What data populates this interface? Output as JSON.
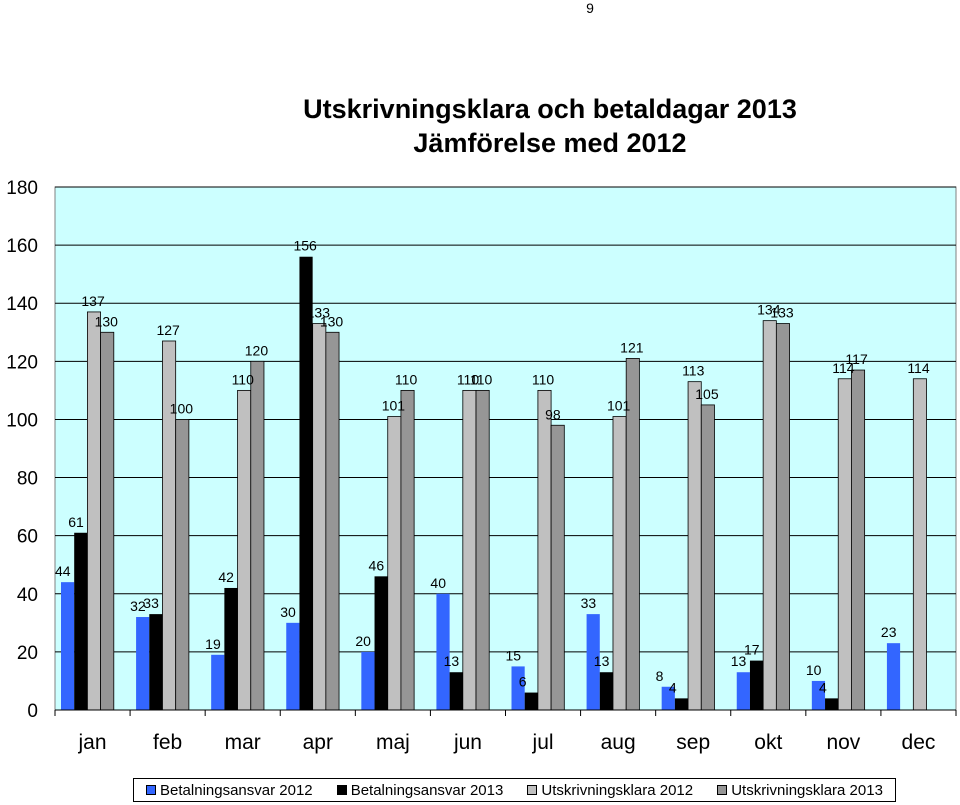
{
  "page": {
    "number": "9"
  },
  "chart_data": {
    "type": "bar",
    "title": [
      "Utskrivningsklara och betaldagar 2013",
      "Jämförelse med 2012"
    ],
    "categories": [
      "jan",
      "feb",
      "mar",
      "apr",
      "maj",
      "jun",
      "jul",
      "aug",
      "sep",
      "okt",
      "nov",
      "dec"
    ],
    "ylim": [
      0,
      180
    ],
    "yticks": [
      "0",
      "20",
      "40",
      "60",
      "80",
      "100",
      "120",
      "140",
      "160",
      "180"
    ],
    "grid": true,
    "legend_position": "bottom",
    "plot_background": "#CCFFFF",
    "series": [
      {
        "name": "Betalningsansvar 2012",
        "color": "#3366FF",
        "values": [
          44,
          32,
          19,
          30,
          20,
          40,
          15,
          33,
          8,
          13,
          10,
          23
        ]
      },
      {
        "name": "Betalningsansvar 2013",
        "color": "#000000",
        "values": [
          61,
          33,
          42,
          156,
          46,
          13,
          6,
          13,
          4,
          17,
          4,
          null
        ]
      },
      {
        "name": "Utskrivningsklara 2012",
        "color": "#C0C0C0",
        "values": [
          137,
          127,
          110,
          133,
          101,
          110,
          110,
          101,
          113,
          134,
          114,
          114
        ]
      },
      {
        "name": "Utskrivningsklara 2013",
        "color": "#969696",
        "values": [
          130,
          100,
          120,
          130,
          110,
          110,
          98,
          121,
          105,
          133,
          117,
          null
        ]
      }
    ]
  }
}
